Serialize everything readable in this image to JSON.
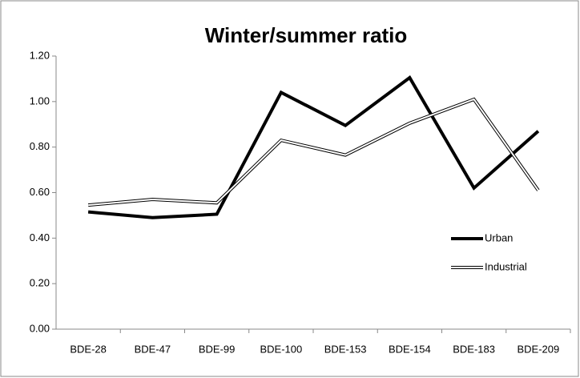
{
  "chart_data": {
    "type": "line",
    "title": "Winter/summer ratio",
    "categories": [
      "BDE-28",
      "BDE-47",
      "BDE-99",
      "BDE-100",
      "BDE-153",
      "BDE-154",
      "BDE-183",
      "BDE-209"
    ],
    "series": [
      {
        "name": "Urban",
        "color": "#000000",
        "values": [
          0.515,
          0.49,
          0.505,
          1.04,
          0.895,
          1.105,
          0.62,
          0.87
        ]
      },
      {
        "name": "Industrial",
        "color": "#ffffff",
        "values": [
          0.545,
          0.57,
          0.555,
          0.83,
          0.765,
          0.905,
          1.01,
          0.61
        ]
      }
    ],
    "ylim": [
      0,
      1.2
    ],
    "yticks": [
      {
        "value": 0,
        "label": "0.00"
      },
      {
        "value": 0.2,
        "label": "0.20"
      },
      {
        "value": 0.4,
        "label": "0.40"
      },
      {
        "value": 0.6,
        "label": "0.60"
      },
      {
        "value": 0.8,
        "label": "0.80"
      },
      {
        "value": 1.0,
        "label": "1.00"
      },
      {
        "value": 1.2,
        "label": "1.20"
      }
    ],
    "grid": false,
    "legend": "right"
  }
}
